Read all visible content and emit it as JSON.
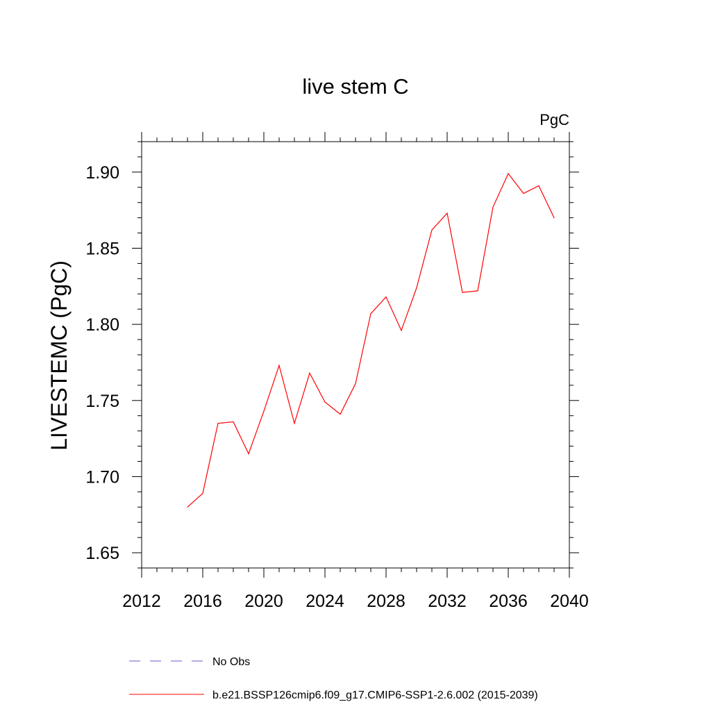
{
  "chart_data": {
    "type": "line",
    "title": "live stem C",
    "units_label": "PgC",
    "ylabel": "LIVESTEMC  (PgC)",
    "xlabel": "",
    "xlim": [
      2012,
      2040
    ],
    "ylim": [
      1.64,
      1.92
    ],
    "x_ticks": [
      2012,
      2016,
      2020,
      2024,
      2028,
      2032,
      2036,
      2040
    ],
    "x_tick_labels": [
      "2012",
      "2016",
      "2020",
      "2024",
      "2028",
      "2032",
      "2036",
      "2040"
    ],
    "y_ticks": [
      1.65,
      1.7,
      1.75,
      1.8,
      1.85,
      1.9
    ],
    "y_tick_labels": [
      "1.65",
      "1.70",
      "1.75",
      "1.80",
      "1.85",
      "1.90"
    ],
    "grid": false,
    "legend_position": "bottom",
    "x": [
      2015,
      2016,
      2017,
      2018,
      2019,
      2020,
      2021,
      2022,
      2023,
      2024,
      2025,
      2026,
      2027,
      2028,
      2029,
      2030,
      2031,
      2032,
      2033,
      2034,
      2035,
      2036,
      2037,
      2038,
      2039
    ],
    "series": [
      {
        "name": "b.e21.BSSP126cmip6.f09_g17.CMIP6-SSP1-2.6.002 (2015-2039)",
        "color": "#ff0000",
        "style": "solid",
        "values": [
          1.68,
          1.689,
          1.735,
          1.736,
          1.715,
          1.743,
          1.773,
          1.735,
          1.768,
          1.749,
          1.741,
          1.761,
          1.807,
          1.818,
          1.796,
          1.824,
          1.862,
          1.873,
          1.821,
          1.822,
          1.877,
          1.899,
          1.886,
          1.891,
          1.87
        ]
      }
    ],
    "legend": [
      {
        "label": "No Obs",
        "color": "#6a5acd",
        "style": "dashed"
      },
      {
        "label": "b.e21.BSSP126cmip6.f09_g17.CMIP6-SSP1-2.6.002 (2015-2039)",
        "color": "#ff0000",
        "style": "solid"
      }
    ]
  }
}
